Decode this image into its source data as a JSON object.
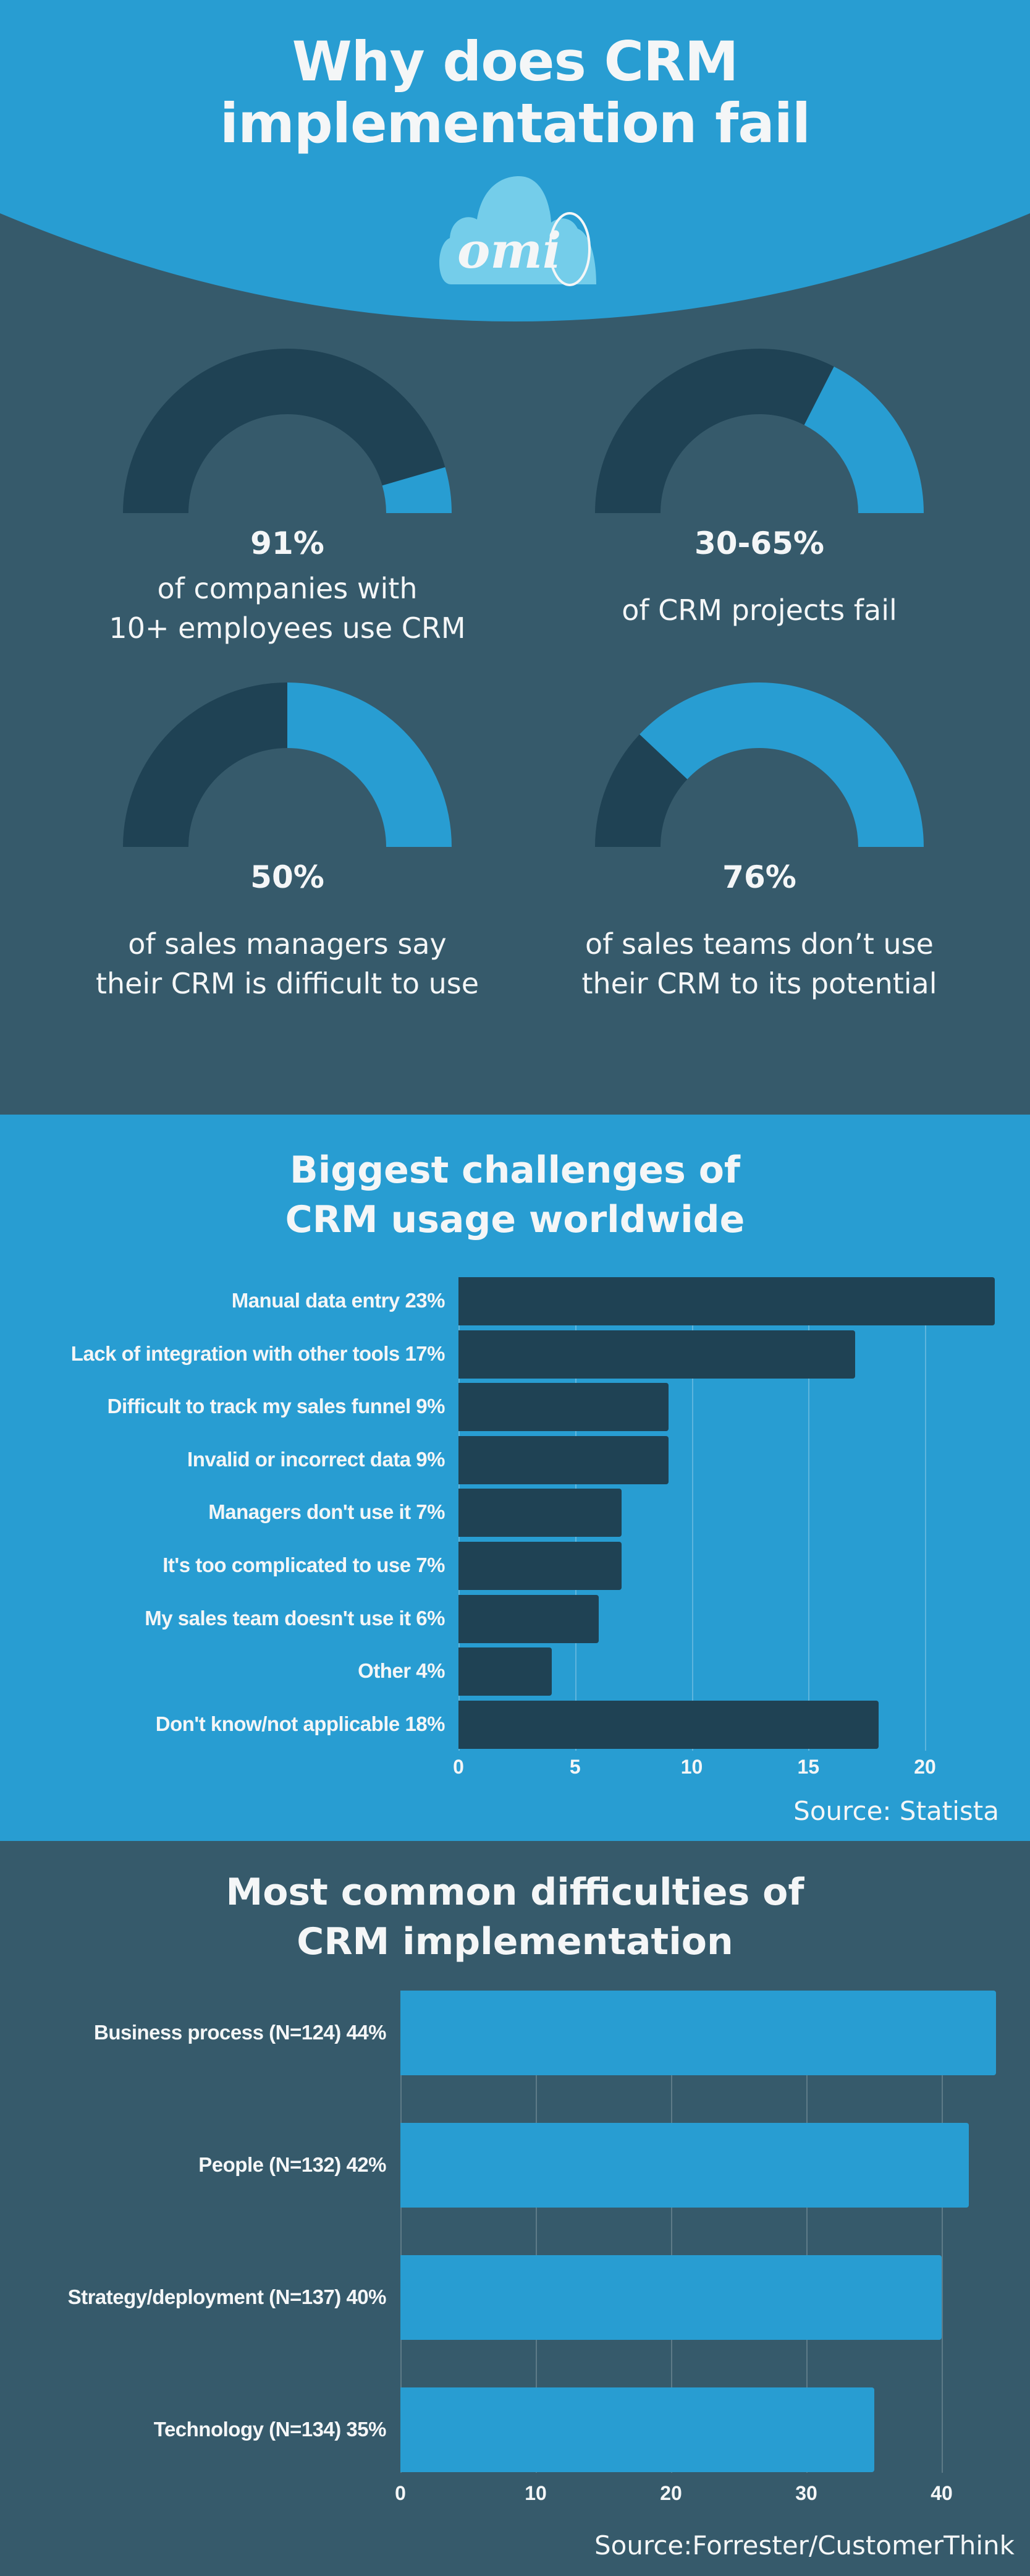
{
  "header": {
    "title_line1": "Why does CRM",
    "title_line2": "implementation fail",
    "logo_text": "omi",
    "colors": {
      "blue": "#289dd2",
      "slate": "#365a6b",
      "navy": "#1f4254",
      "cloud": "#74cdea"
    }
  },
  "stats": [
    {
      "value": "91%",
      "line1": "of companies with",
      "line2": "10+ employees use CRM",
      "blue_share_percent": 9
    },
    {
      "value": "30-65%",
      "line1": "of CRM projects fail",
      "line2": "",
      "blue_share_percent": 35
    },
    {
      "value": "50%",
      "line1": "of sales managers say",
      "line2": "their CRM is difficult to use",
      "blue_share_percent": 50
    },
    {
      "value": "76%",
      "line1": "of sales teams don’t use",
      "line2": "their CRM to its potential",
      "blue_share_percent": 76
    }
  ],
  "chart_data": [
    {
      "type": "bar",
      "orientation": "horizontal",
      "title": "Biggest challenges of CRM usage worldwide",
      "title_line1": "Biggest challenges of",
      "title_line2": "CRM usage worldwide",
      "categories": [
        "Manual data entry 23%",
        "Lack of integration with other tools 17%",
        "Difficult to track my sales funnel 9%",
        "Invalid or incorrect data 9%",
        "Managers don't use it 7%",
        "It's too complicated to use 7%",
        "My sales team doesn't use it 6%",
        "Other 4%",
        "Don't know/not applicable 18%"
      ],
      "values": [
        23,
        17,
        9,
        9,
        7,
        7,
        6,
        4,
        18
      ],
      "xticks": [
        "0",
        "5",
        "10",
        "15",
        "20"
      ],
      "xlim": [
        0,
        23
      ],
      "grid": true,
      "bar_color": "#1f4254",
      "source": "Source: Statista"
    },
    {
      "type": "bar",
      "orientation": "horizontal",
      "title": "Most common difficulties of CRM implementation",
      "title_line1": "Most common difficulties of",
      "title_line2": "CRM implementation",
      "categories": [
        "Business process (N=124)  44%",
        "People (N=132) 42%",
        "Strategy/deployment (N=137) 40%",
        "Technology (N=134) 35%"
      ],
      "values": [
        44,
        42,
        40,
        35
      ],
      "xticks": [
        "0",
        "10",
        "20",
        "30",
        "40"
      ],
      "xlim": [
        0,
        44
      ],
      "grid": true,
      "bar_color": "#289dd2",
      "source": "Source:Forrester/CustomerThink"
    }
  ]
}
